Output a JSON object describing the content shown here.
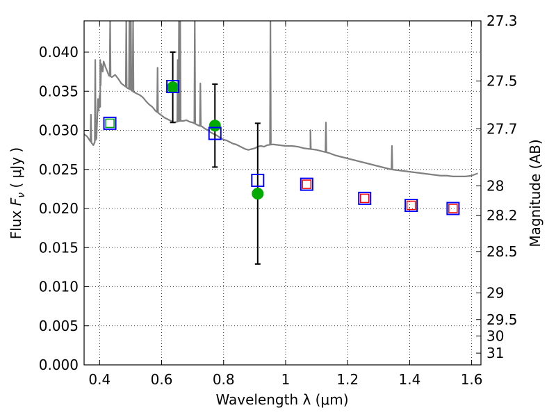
{
  "chart_data": {
    "type": "scatter",
    "xlabel": "Wavelength  λ (μm)",
    "ylabel": "Flux  F_ν  ( μJy )",
    "ylabel_parts": {
      "pre": "Flux  ",
      "F": "F",
      "nu": "ν",
      "post": "  ( μJy )"
    },
    "y2label": "Magnitude (AB)",
    "xlim": [
      0.35,
      1.63
    ],
    "ylim": [
      0.0,
      0.044
    ],
    "grid": true,
    "x_ticks": [
      0.4,
      0.6,
      0.8,
      1.0,
      1.2,
      1.4,
      1.6
    ],
    "x_tick_labels": [
      "0.4",
      "0.6",
      "0.8",
      "1",
      "1.2",
      "1.4",
      "1.6"
    ],
    "y_ticks": [
      0.0,
      0.005,
      0.01,
      0.015,
      0.02,
      0.025,
      0.03,
      0.035,
      0.04
    ],
    "y_tick_labels": [
      "0.000",
      "0.005",
      "0.010",
      "0.015",
      "0.020",
      "0.025",
      "0.030",
      "0.035",
      "0.040"
    ],
    "y2_ticks": [
      {
        "label": "27.3",
        "flux": 0.044
      },
      {
        "label": "27.5",
        "flux": 0.0363
      },
      {
        "label": "27.7",
        "flux": 0.0302
      },
      {
        "label": "28",
        "flux": 0.0229
      },
      {
        "label": "28.2",
        "flux": 0.0191
      },
      {
        "label": "28.5",
        "flux": 0.0145
      },
      {
        "label": "29",
        "flux": 0.0092
      },
      {
        "label": "29.5",
        "flux": 0.0058
      },
      {
        "label": "30",
        "flux": 0.0037
      },
      {
        "label": "31",
        "flux": 0.0015
      }
    ],
    "colors": {
      "model": "#808080",
      "observed": "#00aa00",
      "errorbar": "#000000",
      "square_outer": "#0000ff",
      "square_green": "#00aa00",
      "square_red": "#ff0000",
      "grid": "#000000"
    },
    "series": [
      {
        "kind": "model_sed",
        "points": [
          [
            0.35,
            0.0295
          ],
          [
            0.36,
            0.0292
          ],
          [
            0.37,
            0.0286
          ],
          [
            0.38,
            0.0281
          ],
          [
            0.39,
            0.029
          ],
          [
            0.395,
            0.034
          ],
          [
            0.397,
            0.0325
          ],
          [
            0.4,
            0.0345
          ],
          [
            0.402,
            0.033
          ],
          [
            0.405,
            0.0385
          ],
          [
            0.41,
            0.0375
          ],
          [
            0.413,
            0.0388
          ],
          [
            0.42,
            0.038
          ],
          [
            0.43,
            0.037
          ],
          [
            0.44,
            0.0368
          ],
          [
            0.45,
            0.0371
          ],
          [
            0.46,
            0.0366
          ],
          [
            0.47,
            0.036
          ],
          [
            0.48,
            0.0357
          ],
          [
            0.49,
            0.0354
          ],
          [
            0.5,
            0.0352
          ],
          [
            0.51,
            0.0349
          ],
          [
            0.52,
            0.0347
          ],
          [
            0.53,
            0.0345
          ],
          [
            0.54,
            0.0342
          ],
          [
            0.55,
            0.0337
          ],
          [
            0.56,
            0.0333
          ],
          [
            0.57,
            0.033
          ],
          [
            0.58,
            0.0325
          ],
          [
            0.59,
            0.0322
          ],
          [
            0.6,
            0.0319
          ],
          [
            0.61,
            0.0316
          ],
          [
            0.62,
            0.0314
          ],
          [
            0.63,
            0.0312
          ],
          [
            0.64,
            0.031
          ],
          [
            0.65,
            0.0311
          ],
          [
            0.66,
            0.0312
          ],
          [
            0.67,
            0.0312
          ],
          [
            0.68,
            0.0313
          ],
          [
            0.69,
            0.0311
          ],
          [
            0.7,
            0.031
          ],
          [
            0.71,
            0.0308
          ],
          [
            0.72,
            0.0306
          ],
          [
            0.73,
            0.0305
          ],
          [
            0.74,
            0.0302
          ],
          [
            0.75,
            0.03
          ],
          [
            0.76,
            0.0297
          ],
          [
            0.77,
            0.0295
          ],
          [
            0.78,
            0.0293
          ],
          [
            0.79,
            0.029
          ],
          [
            0.8,
            0.0288
          ],
          [
            0.81,
            0.0287
          ],
          [
            0.82,
            0.0285
          ],
          [
            0.83,
            0.0283
          ],
          [
            0.84,
            0.0282
          ],
          [
            0.85,
            0.028
          ],
          [
            0.86,
            0.0278
          ],
          [
            0.87,
            0.0276
          ],
          [
            0.88,
            0.0275
          ],
          [
            0.89,
            0.0276
          ],
          [
            0.9,
            0.0277
          ],
          [
            0.91,
            0.0279
          ],
          [
            0.92,
            0.028
          ],
          [
            0.93,
            0.0279
          ],
          [
            0.94,
            0.0281
          ],
          [
            0.96,
            0.0282
          ],
          [
            0.98,
            0.0281
          ],
          [
            1.0,
            0.028
          ],
          [
            1.02,
            0.028
          ],
          [
            1.04,
            0.0279
          ],
          [
            1.06,
            0.0277
          ],
          [
            1.08,
            0.0276
          ],
          [
            1.1,
            0.0275
          ],
          [
            1.12,
            0.0273
          ],
          [
            1.14,
            0.0271
          ],
          [
            1.16,
            0.0268
          ],
          [
            1.18,
            0.0266
          ],
          [
            1.2,
            0.0264
          ],
          [
            1.22,
            0.0262
          ],
          [
            1.24,
            0.026
          ],
          [
            1.26,
            0.0258
          ],
          [
            1.28,
            0.0256
          ],
          [
            1.3,
            0.0254
          ],
          [
            1.32,
            0.0252
          ],
          [
            1.34,
            0.025
          ],
          [
            1.36,
            0.0249
          ],
          [
            1.38,
            0.0248
          ],
          [
            1.4,
            0.0247
          ],
          [
            1.42,
            0.0246
          ],
          [
            1.44,
            0.0245
          ],
          [
            1.46,
            0.0244
          ],
          [
            1.48,
            0.0243
          ],
          [
            1.5,
            0.0242
          ],
          [
            1.52,
            0.0242
          ],
          [
            1.54,
            0.0241
          ],
          [
            1.56,
            0.0241
          ],
          [
            1.58,
            0.0241
          ],
          [
            1.6,
            0.0242
          ],
          [
            1.62,
            0.0245
          ]
        ],
        "emission_lines": [
          {
            "x": 0.372,
            "peak": 0.032
          },
          {
            "x": 0.386,
            "peak": 0.039
          },
          {
            "x": 0.402,
            "peak": 0.039
          },
          {
            "x": 0.434,
            "peak": 0.044
          },
          {
            "x": 0.486,
            "peak": 0.044
          },
          {
            "x": 0.496,
            "peak": 0.044
          },
          {
            "x": 0.501,
            "peak": 0.044
          },
          {
            "x": 0.508,
            "peak": 0.044
          },
          {
            "x": 0.587,
            "peak": 0.038
          },
          {
            "x": 0.652,
            "peak": 0.039
          },
          {
            "x": 0.656,
            "peak": 0.044
          },
          {
            "x": 0.66,
            "peak": 0.044
          },
          {
            "x": 0.707,
            "peak": 0.044
          },
          {
            "x": 0.725,
            "peak": 0.036
          },
          {
            "x": 0.951,
            "peak": 0.044
          },
          {
            "x": 1.08,
            "peak": 0.03
          },
          {
            "x": 1.13,
            "peak": 0.031
          },
          {
            "x": 1.343,
            "peak": 0.028
          }
        ]
      },
      {
        "kind": "observed",
        "points": [
          {
            "x": 0.636,
            "y": 0.0355,
            "err": 0.0045
          },
          {
            "x": 0.772,
            "y": 0.0306,
            "err": 0.0053
          },
          {
            "x": 0.91,
            "y": 0.0219,
            "err": 0.009
          }
        ]
      },
      {
        "kind": "model_photometry",
        "points": [
          {
            "x": 0.433,
            "y": 0.0309,
            "inner": "green"
          },
          {
            "x": 0.636,
            "y": 0.0356,
            "inner": "none"
          },
          {
            "x": 0.772,
            "y": 0.0296,
            "inner": "none"
          },
          {
            "x": 0.91,
            "y": 0.0236,
            "inner": "none"
          },
          {
            "x": 1.068,
            "y": 0.0231,
            "inner": "red"
          },
          {
            "x": 1.255,
            "y": 0.0213,
            "inner": "red"
          },
          {
            "x": 1.405,
            "y": 0.0204,
            "inner": "red"
          },
          {
            "x": 1.54,
            "y": 0.02,
            "inner": "red"
          }
        ]
      }
    ]
  }
}
